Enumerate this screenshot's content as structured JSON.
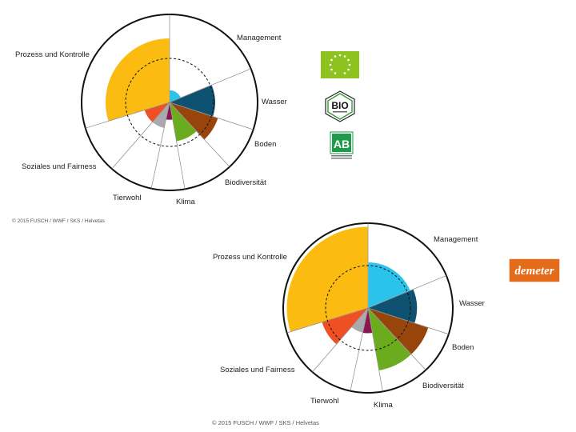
{
  "chart_data": [
    {
      "type": "polar-area",
      "title": "",
      "axis_labels": [
        "Management",
        "Wasser",
        "Boden",
        "Biodiversität",
        "Klima",
        "Tierwohl",
        "Soziales und Fairness",
        "Prozess und Kontrolle"
      ],
      "reference_ring": 0.5,
      "series": [
        {
          "values": [
            0.14,
            0.52,
            0.58,
            0.45,
            0.2,
            0.3,
            0.3,
            0.73
          ],
          "colors": [
            "#29c3ec",
            "#0f5170",
            "#98450c",
            "#6aac1e",
            "#8a1550",
            "#a9a9ae",
            "#f04f23",
            "#fbbb10"
          ]
        }
      ],
      "copyright": "© 2015 FUSCH / WWF / SKS / Helvetas",
      "logos": [
        "eu-organic-logo",
        "bio-hexagon-logo",
        "ab-agriculture-biologique-logo"
      ]
    },
    {
      "type": "polar-area",
      "title": "",
      "axis_labels": [
        "Management",
        "Wasser",
        "Boden",
        "Biodiversität",
        "Klima",
        "Tierwohl",
        "Soziales und Fairness",
        "Prozess und Kontrolle"
      ],
      "reference_ring": 0.5,
      "series": [
        {
          "values": [
            0.54,
            0.58,
            0.75,
            0.75,
            0.3,
            0.3,
            0.57,
            0.96
          ],
          "colors": [
            "#29c3ec",
            "#0f5170",
            "#98450c",
            "#6aac1e",
            "#8a1550",
            "#a9a9ae",
            "#f04f23",
            "#fbbb10"
          ]
        }
      ],
      "copyright": "© 2015 FUSCH / WWF / SKS / Helvetas",
      "logos": [
        "demeter-logo"
      ]
    }
  ],
  "logos": {
    "bio_text": "BIO",
    "ab_text": "AB",
    "demeter_text": "demeter"
  }
}
